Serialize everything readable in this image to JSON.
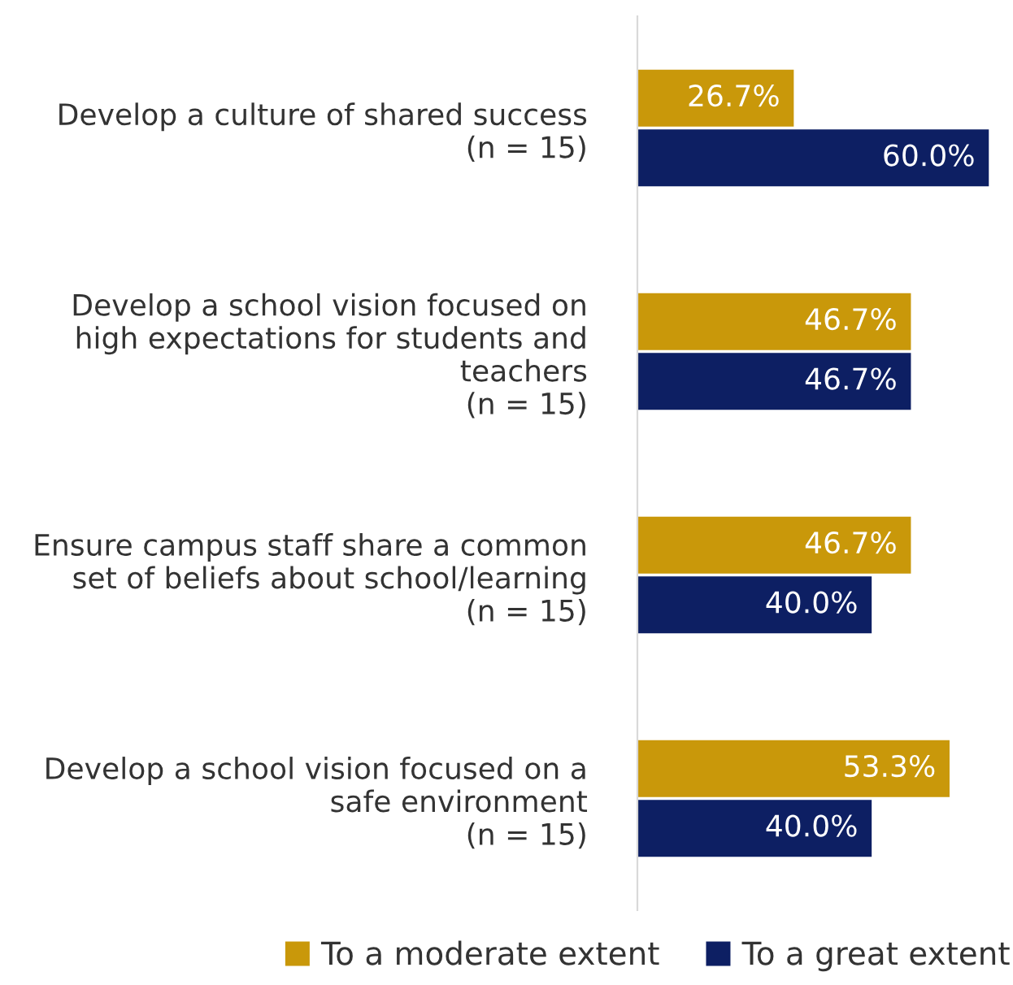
{
  "chart_data": {
    "type": "bar",
    "orientation": "horizontal",
    "categories": [
      "Develop a culture of shared success\n(n = 15)",
      "Develop a school vision focused on\nhigh expectations for students and\nteachers\n(n = 15)",
      "Ensure campus staff share a common\nset of beliefs about school/learning\n(n = 15)",
      "Develop a school vision focused on a\nsafe environment\n(n = 15)"
    ],
    "series": [
      {
        "name": "To a moderate extent",
        "color": "#c9980a",
        "values": [
          26.7,
          46.7,
          46.7,
          53.3
        ],
        "value_labels": [
          "26.7%",
          "46.7%",
          "46.7%",
          "53.3%"
        ]
      },
      {
        "name": "To a great extent",
        "color": "#0d1f63",
        "values": [
          60.0,
          46.7,
          40.0,
          40.0
        ],
        "value_labels": [
          "60.0%",
          "46.7%",
          "40.0%",
          "40.0%"
        ]
      }
    ],
    "relative": false,
    "legend": "bottom",
    "grid": false
  }
}
